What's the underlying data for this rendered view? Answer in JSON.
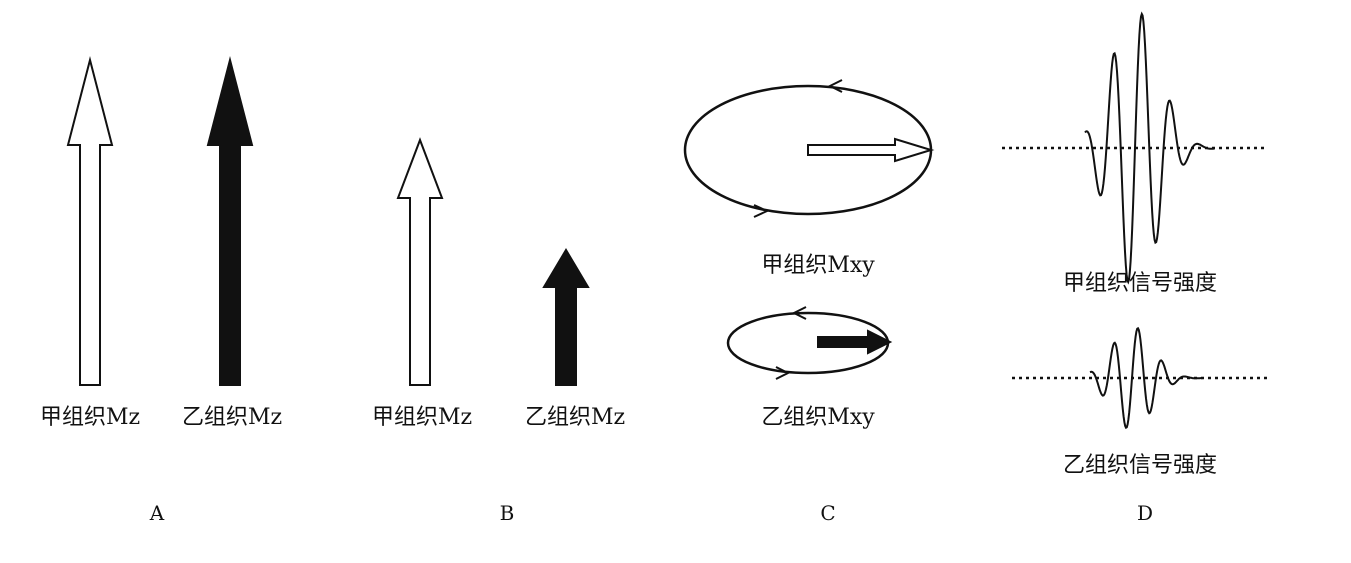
{
  "panels": [
    {
      "id": "A",
      "label": "A",
      "items": [
        "甲组织Mz",
        "乙组织Mz"
      ]
    },
    {
      "id": "B",
      "label": "B",
      "items": [
        "甲组织Mz",
        "乙组织Mz"
      ]
    },
    {
      "id": "C",
      "label": "C",
      "items": [
        "甲组织Mxy",
        "乙组织Mxy"
      ]
    },
    {
      "id": "D",
      "label": "D",
      "items": [
        "甲组织信号强度",
        "乙组织信号强度"
      ]
    }
  ],
  "colors": {
    "ink": "#111111",
    "paper": "#ffffff"
  }
}
